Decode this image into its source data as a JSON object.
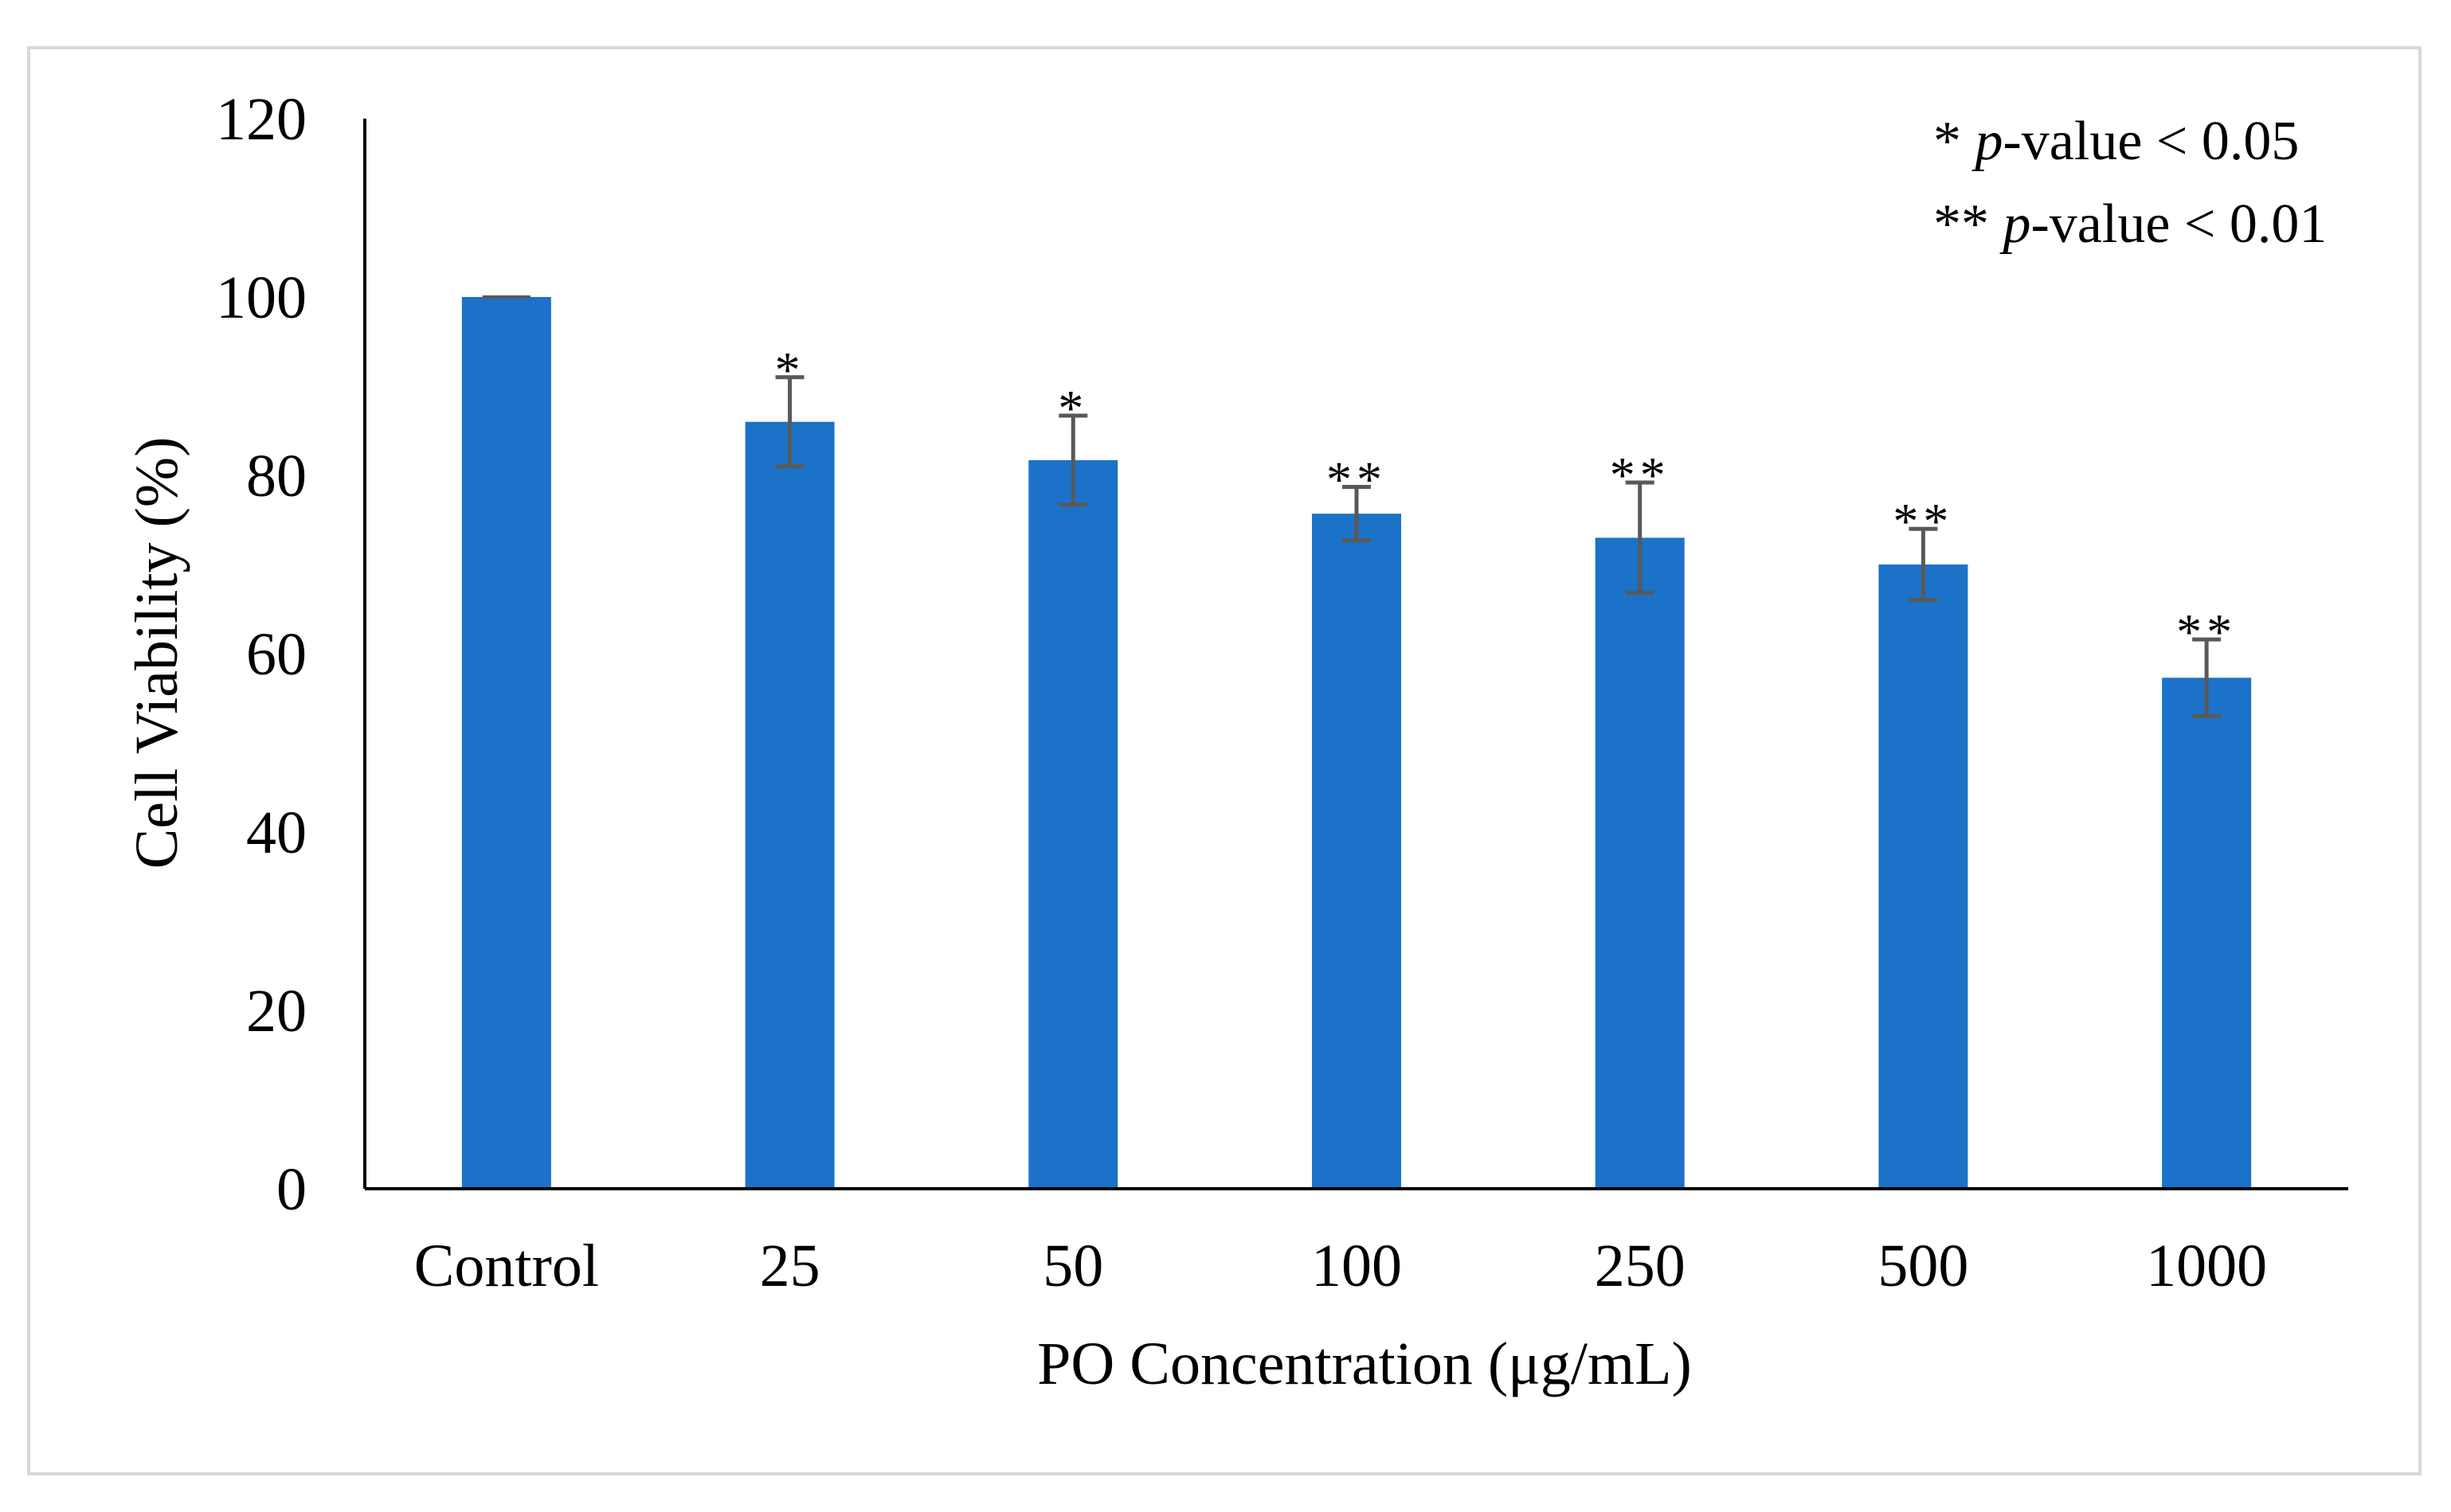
{
  "chart_data": {
    "type": "bar",
    "title": "",
    "xlabel": "PO Concentration (μg/mL)",
    "ylabel": "Cell Viability (%)",
    "ylim": [
      0,
      120
    ],
    "yticks": [
      0,
      20,
      40,
      60,
      80,
      100,
      120
    ],
    "categories": [
      "Control",
      "25",
      "50",
      "100",
      "250",
      "500",
      "1000"
    ],
    "series": [
      {
        "name": "Cell Viability",
        "color": "#1b72c8",
        "values": [
          100,
          86,
          81.7,
          75.7,
          73,
          70,
          57.3
        ],
        "errors": [
          0,
          5,
          5,
          3,
          6.2,
          4,
          4.3
        ],
        "significance": [
          "",
          "*",
          "*",
          "**",
          "**",
          "**",
          "**"
        ]
      }
    ],
    "legend": {
      "position": "top-right",
      "entries": [
        {
          "stars": "* ",
          "italic": "p",
          "rest": "-value < 0.05"
        },
        {
          "stars": "** ",
          "italic": "p",
          "rest": "-value < 0.01"
        }
      ]
    },
    "grid": false
  }
}
